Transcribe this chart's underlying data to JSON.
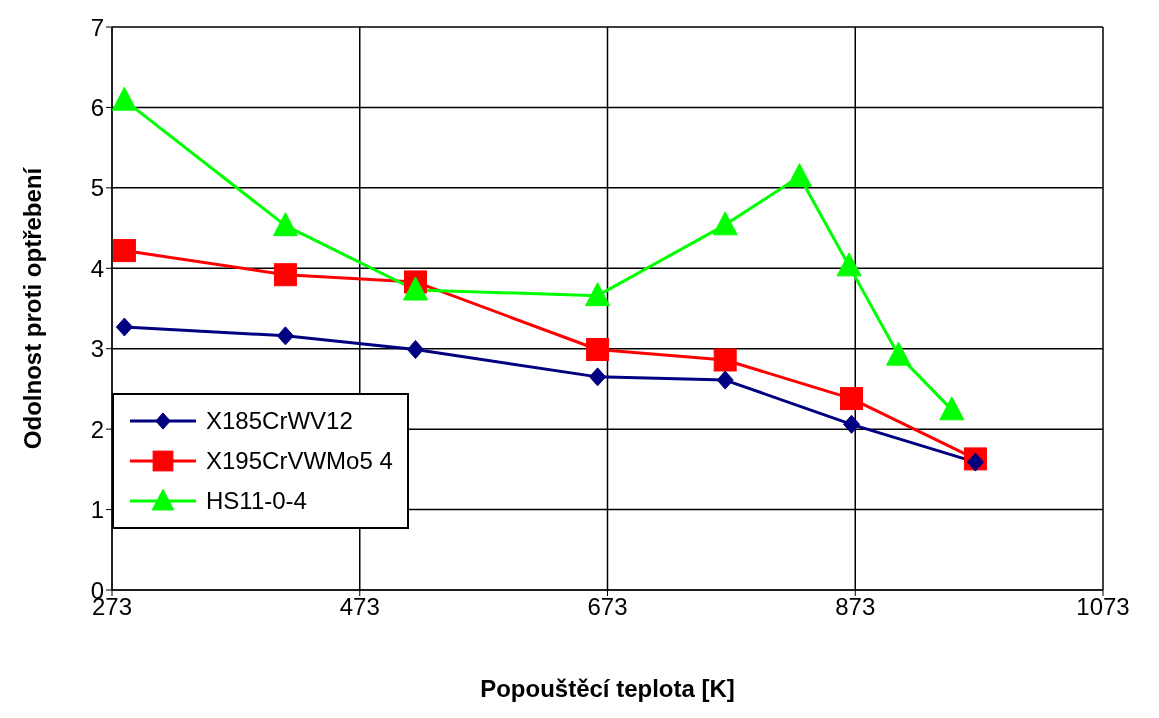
{
  "chart_data": {
    "type": "line",
    "xlabel": "Popouštěcí teplota [K]",
    "ylabel": "Odolnost proti optřebení",
    "xlim": [
      273,
      1073
    ],
    "xticks": [
      273,
      473,
      673,
      873,
      1073
    ],
    "ylim": [
      0,
      7
    ],
    "yticks": [
      0,
      1,
      2,
      3,
      4,
      5,
      6,
      7
    ],
    "grid": true,
    "legend": "bottom left",
    "series": [
      {
        "name": "X185CrWV12",
        "color": "#000080",
        "marker": "diamond",
        "x": [
          283,
          413,
          518,
          665,
          768,
          870,
          970
        ],
        "values": [
          3.27,
          3.16,
          2.99,
          2.65,
          2.61,
          2.06,
          1.59
        ]
      },
      {
        "name": "X195CrVWMo5 4",
        "color": "#ff0000",
        "marker": "square",
        "x": [
          283,
          413,
          518,
          665,
          768,
          870,
          970
        ],
        "values": [
          4.22,
          3.92,
          3.83,
          2.99,
          2.86,
          2.38,
          1.63
        ]
      },
      {
        "name": "HS11-0-4",
        "color": "#00ff00",
        "marker": "triangle",
        "x": [
          283,
          413,
          518,
          665,
          768,
          828,
          868,
          908,
          951
        ],
        "values": [
          6.09,
          4.53,
          3.73,
          3.66,
          4.54,
          5.14,
          4.03,
          2.92,
          2.24
        ]
      }
    ]
  }
}
